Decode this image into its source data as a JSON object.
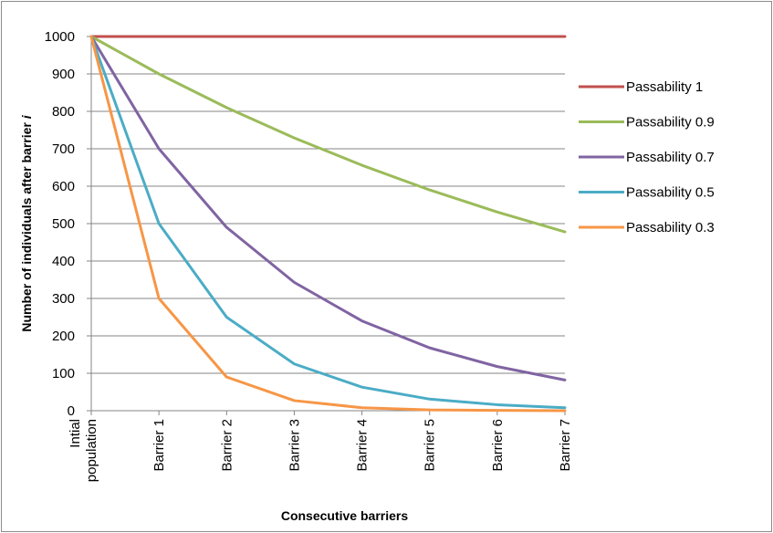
{
  "chart_data": {
    "type": "line",
    "xlabel": "Consecutive barriers",
    "ylabel_main": "Number of individuals after barrier ",
    "ylabel_italic": "i",
    "categories": [
      [
        "Intial",
        "population"
      ],
      [
        "Barrier 1"
      ],
      [
        "Barrier 2"
      ],
      [
        "Barrier 3"
      ],
      [
        "Barrier 4"
      ],
      [
        "Barrier 5"
      ],
      [
        "Barrier 6"
      ],
      [
        "Barrier 7"
      ]
    ],
    "ylim": [
      0,
      1000
    ],
    "yticks": [
      "0",
      "100",
      "200",
      "300",
      "400",
      "500",
      "600",
      "700",
      "800",
      "900",
      "1000"
    ],
    "grid": true,
    "legend_position": "right",
    "series": [
      {
        "name": "Passability 1",
        "color": "#c0504d",
        "values": [
          1000,
          1000,
          1000,
          1000,
          1000,
          1000,
          1000,
          1000
        ]
      },
      {
        "name": "Passability 0.9",
        "color": "#9bbb59",
        "values": [
          1000,
          900,
          810,
          729,
          656,
          590,
          531,
          478
        ]
      },
      {
        "name": "Passability 0.7",
        "color": "#8064a2",
        "values": [
          1000,
          700,
          490,
          343,
          240,
          168,
          118,
          82
        ]
      },
      {
        "name": "Passability 0.5",
        "color": "#4bacc6",
        "values": [
          1000,
          500,
          250,
          125,
          63,
          31,
          16,
          8
        ]
      },
      {
        "name": "Passability 0.3",
        "color": "#f79646",
        "values": [
          1000,
          300,
          90,
          27,
          8,
          2,
          1,
          0
        ]
      }
    ]
  }
}
